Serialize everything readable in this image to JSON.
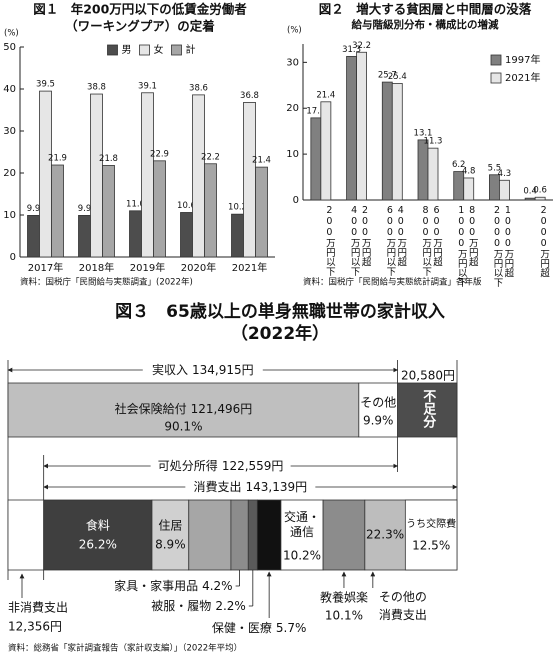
{
  "chart_data": [
    {
      "type": "bar",
      "title": [
        "図１　年200万円以下の低賃金労働者",
        "（ワーキングプア）の定着"
      ],
      "y_unit": "(%)",
      "categories": [
        "2017年",
        "2018年",
        "2019年",
        "2020年",
        "2021年"
      ],
      "series": [
        {
          "name": "男",
          "color": "#4d4d4d",
          "values": [
            9.9,
            9.9,
            11.0,
            10.6,
            10.2
          ],
          "value_labels": [
            "9.9",
            "9.9",
            "11.0",
            "10.6",
            "10.2"
          ]
        },
        {
          "name": "女",
          "color": "#e6e6e6",
          "values": [
            39.5,
            38.8,
            39.1,
            38.6,
            36.8
          ]
        },
        {
          "name": "計",
          "color": "#a6a6a6",
          "values": [
            21.9,
            21.8,
            22.9,
            22.2,
            21.4
          ]
        }
      ],
      "ylim": [
        0,
        50
      ],
      "yticks": [
        0,
        10,
        20,
        30,
        40,
        50
      ],
      "grid": false,
      "legend": "top",
      "source": "資料：国税庁「民間給与実態調査」(2022年)"
    },
    {
      "type": "bar",
      "title": [
        "図２　増大する貧困層と中間層の没落"
      ],
      "subtitle": "給与階級別分布・構成比の増減",
      "y_unit": "(%)",
      "categories": [
        "200万円以下",
        "200万円超 400万円以下",
        "400万円超 600万円以下",
        "600万円超 800万円以下",
        "800万円超 1000万円以下",
        "1000万円超 2000万円以下",
        "2000万円超"
      ],
      "series": [
        {
          "name": "1997年",
          "color": "#808080",
          "values": [
            17.9,
            31.3,
            25.7,
            13.1,
            6.2,
            5.5,
            0.4
          ]
        },
        {
          "name": "2021年",
          "color": "#e6e6e6",
          "values": [
            21.4,
            32.2,
            25.4,
            11.3,
            4.8,
            4.3,
            0.6
          ]
        }
      ],
      "ylim": [
        0,
        34
      ],
      "yticks": [
        0,
        10,
        20,
        30
      ],
      "grid": false,
      "legend": "right",
      "source": "資料：国税庁「民間給与実態統計調査」各年版"
    },
    {
      "type": "budget",
      "title": [
        "図３　65歳以上の単身無職世帯の家計収入",
        "（2022年）"
      ],
      "income": {
        "label": "実収入",
        "value": 134915,
        "value_label": "134,915円"
      },
      "income_parts": [
        {
          "name": "社会保険給付",
          "amount": 121496,
          "amount_label": "121,496円",
          "share": 90.1,
          "share_label": "90.1%",
          "color": "#bfbfbf"
        },
        {
          "name": "その他",
          "share": 9.9,
          "share_label": "9.9%",
          "color": "#ffffff"
        }
      ],
      "shortfall": {
        "label": "不足分",
        "value": 20580,
        "value_label": "20,580円",
        "color": "#4d4d4d"
      },
      "disposable": {
        "label": "可処分所得",
        "value": 122559,
        "value_label": "122,559円"
      },
      "spending": {
        "label": "消費支出",
        "value": 143139,
        "value_label": "143,139円"
      },
      "non_consumption": {
        "label": "非消費支出",
        "value": 12356,
        "value_label": "12,356円"
      },
      "spending_parts": [
        {
          "name": "食料",
          "share": 26.2,
          "share_label": "26.2%",
          "color": "#3f3f3f"
        },
        {
          "name": "住居",
          "share": 8.9,
          "share_label": "8.9%",
          "color": "#d0d0d0"
        },
        {
          "name": null,
          "share": 10.2,
          "color": "#a6a6a6"
        },
        {
          "name": "家具・家事用品",
          "share": 4.2,
          "share_label": "4.2%",
          "color": "#8c8c8c"
        },
        {
          "name": "被服・履物",
          "share": 2.2,
          "share_label": "2.2%",
          "color": "#5a5a5a"
        },
        {
          "name": "保健・医療",
          "share": 5.7,
          "share_label": "5.7%",
          "color": "#111111"
        },
        {
          "name": "交通・通信",
          "share": 10.2,
          "share_label": "10.2%",
          "color": "#ffffff"
        },
        {
          "name": "教養娯楽",
          "share": 10.1,
          "share_label": "10.1%",
          "color": "#8c8c8c"
        },
        {
          "name": "その他の消費支出",
          "share": 22.3,
          "share_label": "22.3%",
          "color": "#bdbdbd"
        }
      ],
      "entertainment": {
        "name": "うち交際費",
        "share": 12.5,
        "share_label": "12.5%",
        "color": "#ffffff"
      },
      "source": "資料：総務省「家計調査報告（家計収支編）」（2022年平均）"
    }
  ]
}
